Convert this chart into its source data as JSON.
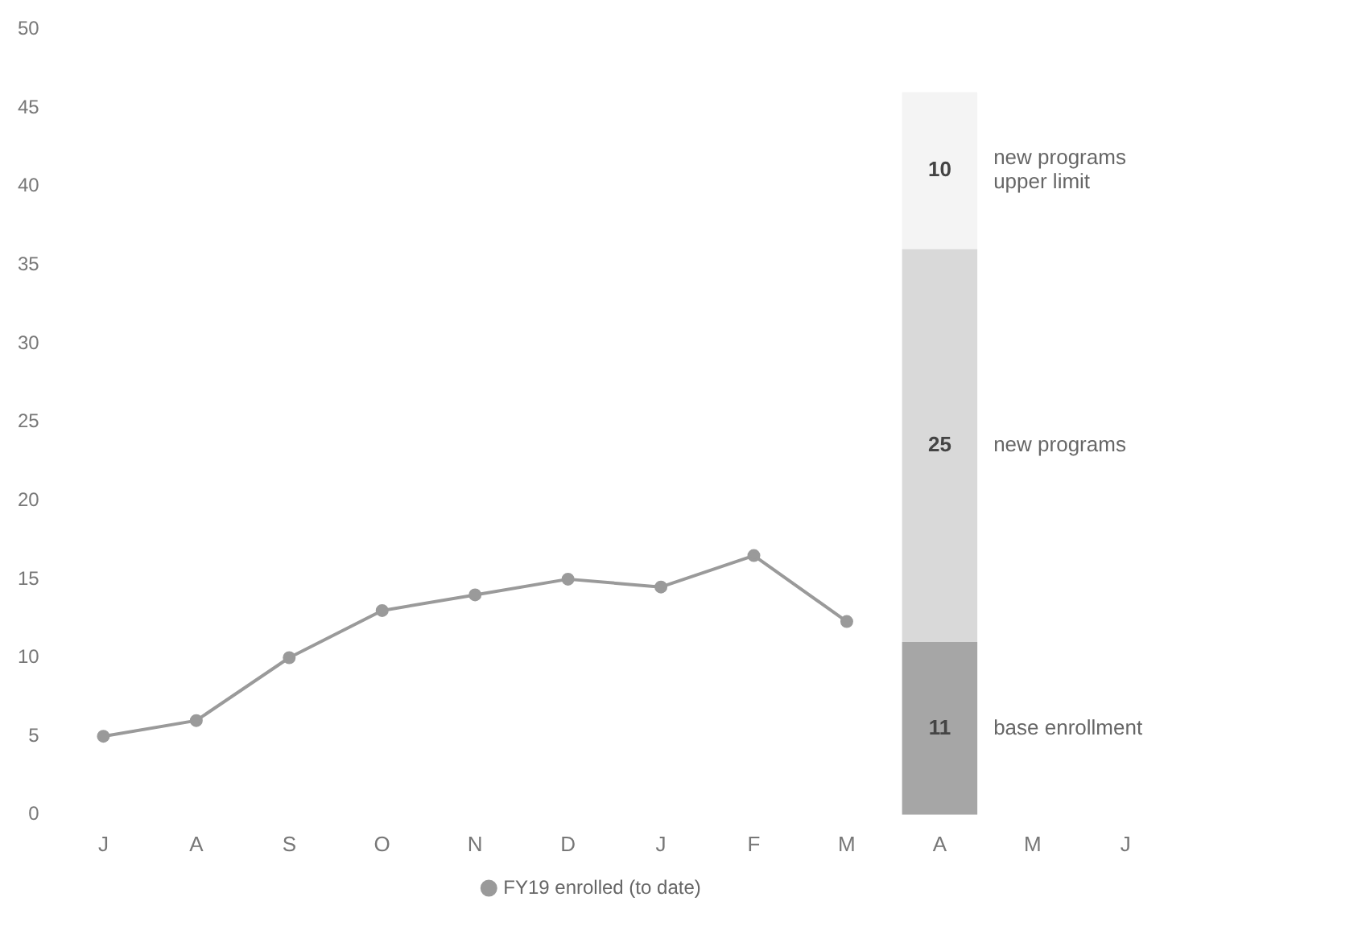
{
  "chart_data": {
    "type": "bar",
    "stacked": true,
    "categories": [
      "J",
      "A",
      "S",
      "O",
      "N",
      "D",
      "J",
      "F",
      "M",
      "A",
      "M",
      "J"
    ],
    "ylim": [
      0,
      50
    ],
    "yticks": [
      0,
      5,
      10,
      15,
      20,
      25,
      30,
      35,
      40,
      45,
      50
    ],
    "grid": false,
    "legend": "bottom",
    "marker": "circle",
    "series": [
      {
        "type": "line",
        "name": "FY19 enrolled (to date)",
        "color": "#9a9a9a",
        "values": [
          5,
          6,
          10,
          13,
          14,
          15,
          14.5,
          16.5,
          12.3,
          null,
          null,
          null
        ]
      },
      {
        "name": "base enrollment",
        "color": "#a6a6a6",
        "values": [
          null,
          null,
          null,
          null,
          null,
          null,
          null,
          null,
          null,
          11,
          null,
          null
        ],
        "value_labels": [
          null,
          null,
          null,
          null,
          null,
          null,
          null,
          null,
          null,
          "11",
          null,
          null
        ]
      },
      {
        "name": "new programs",
        "color": "#d9d9d9",
        "values": [
          null,
          null,
          null,
          null,
          null,
          null,
          null,
          null,
          null,
          25,
          null,
          null
        ],
        "value_labels": [
          null,
          null,
          null,
          null,
          null,
          null,
          null,
          null,
          null,
          "25",
          null,
          null
        ]
      },
      {
        "name": "new programs upper limit",
        "color": "#f4f4f4",
        "values": [
          null,
          null,
          null,
          null,
          null,
          null,
          null,
          null,
          null,
          10,
          null,
          null
        ],
        "value_labels": [
          null,
          null,
          null,
          null,
          null,
          null,
          null,
          null,
          null,
          "10",
          null,
          null
        ]
      }
    ]
  }
}
